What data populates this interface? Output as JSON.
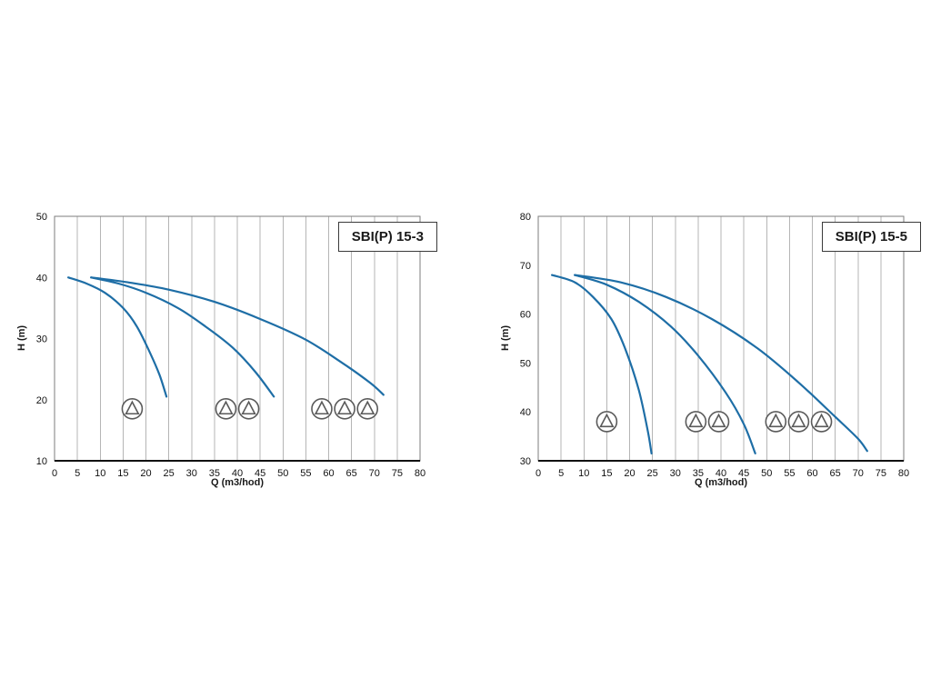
{
  "page": {
    "background": "#ffffff"
  },
  "chart_data": [
    {
      "type": "line",
      "title": "SBI(P) 15-3",
      "xlabel": "Q (m3/hod)",
      "ylabel": "H (m)",
      "xlim": [
        0,
        80
      ],
      "xtick_step": 5,
      "ylim": [
        10,
        50
      ],
      "ytick_step": 10,
      "grid": "vertical-only",
      "grid_color": "#b5b5b5",
      "curve_color": "#1e6ea6",
      "series": [
        {
          "name": "curve-1-pump",
          "points": [
            [
              3,
              40
            ],
            [
              7,
              39
            ],
            [
              11,
              37.5
            ],
            [
              15,
              35
            ],
            [
              18,
              32
            ],
            [
              21,
              27.5
            ],
            [
              23,
              24
            ],
            [
              24.5,
              20.5
            ]
          ]
        },
        {
          "name": "curve-2-pumps",
          "points": [
            [
              8,
              40
            ],
            [
              14,
              39
            ],
            [
              20,
              37.5
            ],
            [
              27,
              35
            ],
            [
              33,
              32
            ],
            [
              39,
              28.5
            ],
            [
              44,
              24.5
            ],
            [
              48,
              20.5
            ]
          ]
        },
        {
          "name": "curve-3-pumps",
          "points": [
            [
              8,
              40
            ],
            [
              16,
              39.2
            ],
            [
              25,
              38
            ],
            [
              35,
              36
            ],
            [
              45,
              33.2
            ],
            [
              55,
              29.8
            ],
            [
              63,
              26
            ],
            [
              69,
              22.8
            ],
            [
              72,
              20.8
            ]
          ]
        }
      ],
      "pump_markers": {
        "y": 18.5,
        "groups": [
          [
            17
          ],
          [
            37.5,
            42.5
          ],
          [
            58.5,
            63.5,
            68.5
          ]
        ]
      }
    },
    {
      "type": "line",
      "title": "SBI(P) 15-5",
      "xlabel": "Q (m3/hod)",
      "ylabel": "H (m)",
      "xlim": [
        0,
        80
      ],
      "xtick_step": 5,
      "ylim": [
        30,
        80
      ],
      "ytick_step": 10,
      "grid": "vertical-only",
      "grid_color": "#b5b5b5",
      "curve_color": "#1e6ea6",
      "series": [
        {
          "name": "curve-1-pump",
          "points": [
            [
              3,
              68
            ],
            [
              8,
              66.5
            ],
            [
              12,
              63.5
            ],
            [
              16,
              59
            ],
            [
              19,
              53
            ],
            [
              22,
              44.5
            ],
            [
              24,
              36
            ],
            [
              24.8,
              31.5
            ]
          ]
        },
        {
          "name": "curve-2-pumps",
          "points": [
            [
              8,
              68
            ],
            [
              15,
              66
            ],
            [
              22,
              62.5
            ],
            [
              29,
              57.5
            ],
            [
              35,
              51.5
            ],
            [
              41,
              44
            ],
            [
              45,
              37.5
            ],
            [
              47.5,
              31.5
            ]
          ]
        },
        {
          "name": "curve-3-pumps",
          "points": [
            [
              8,
              68
            ],
            [
              18,
              66.5
            ],
            [
              28,
              63.5
            ],
            [
              38,
              59
            ],
            [
              48,
              53
            ],
            [
              57,
              46
            ],
            [
              65,
              39
            ],
            [
              70,
              34.5
            ],
            [
              72,
              32
            ]
          ]
        }
      ],
      "pump_markers": {
        "y": 38,
        "groups": [
          [
            15
          ],
          [
            34.5,
            39.5
          ],
          [
            52,
            57,
            62
          ]
        ]
      }
    }
  ]
}
